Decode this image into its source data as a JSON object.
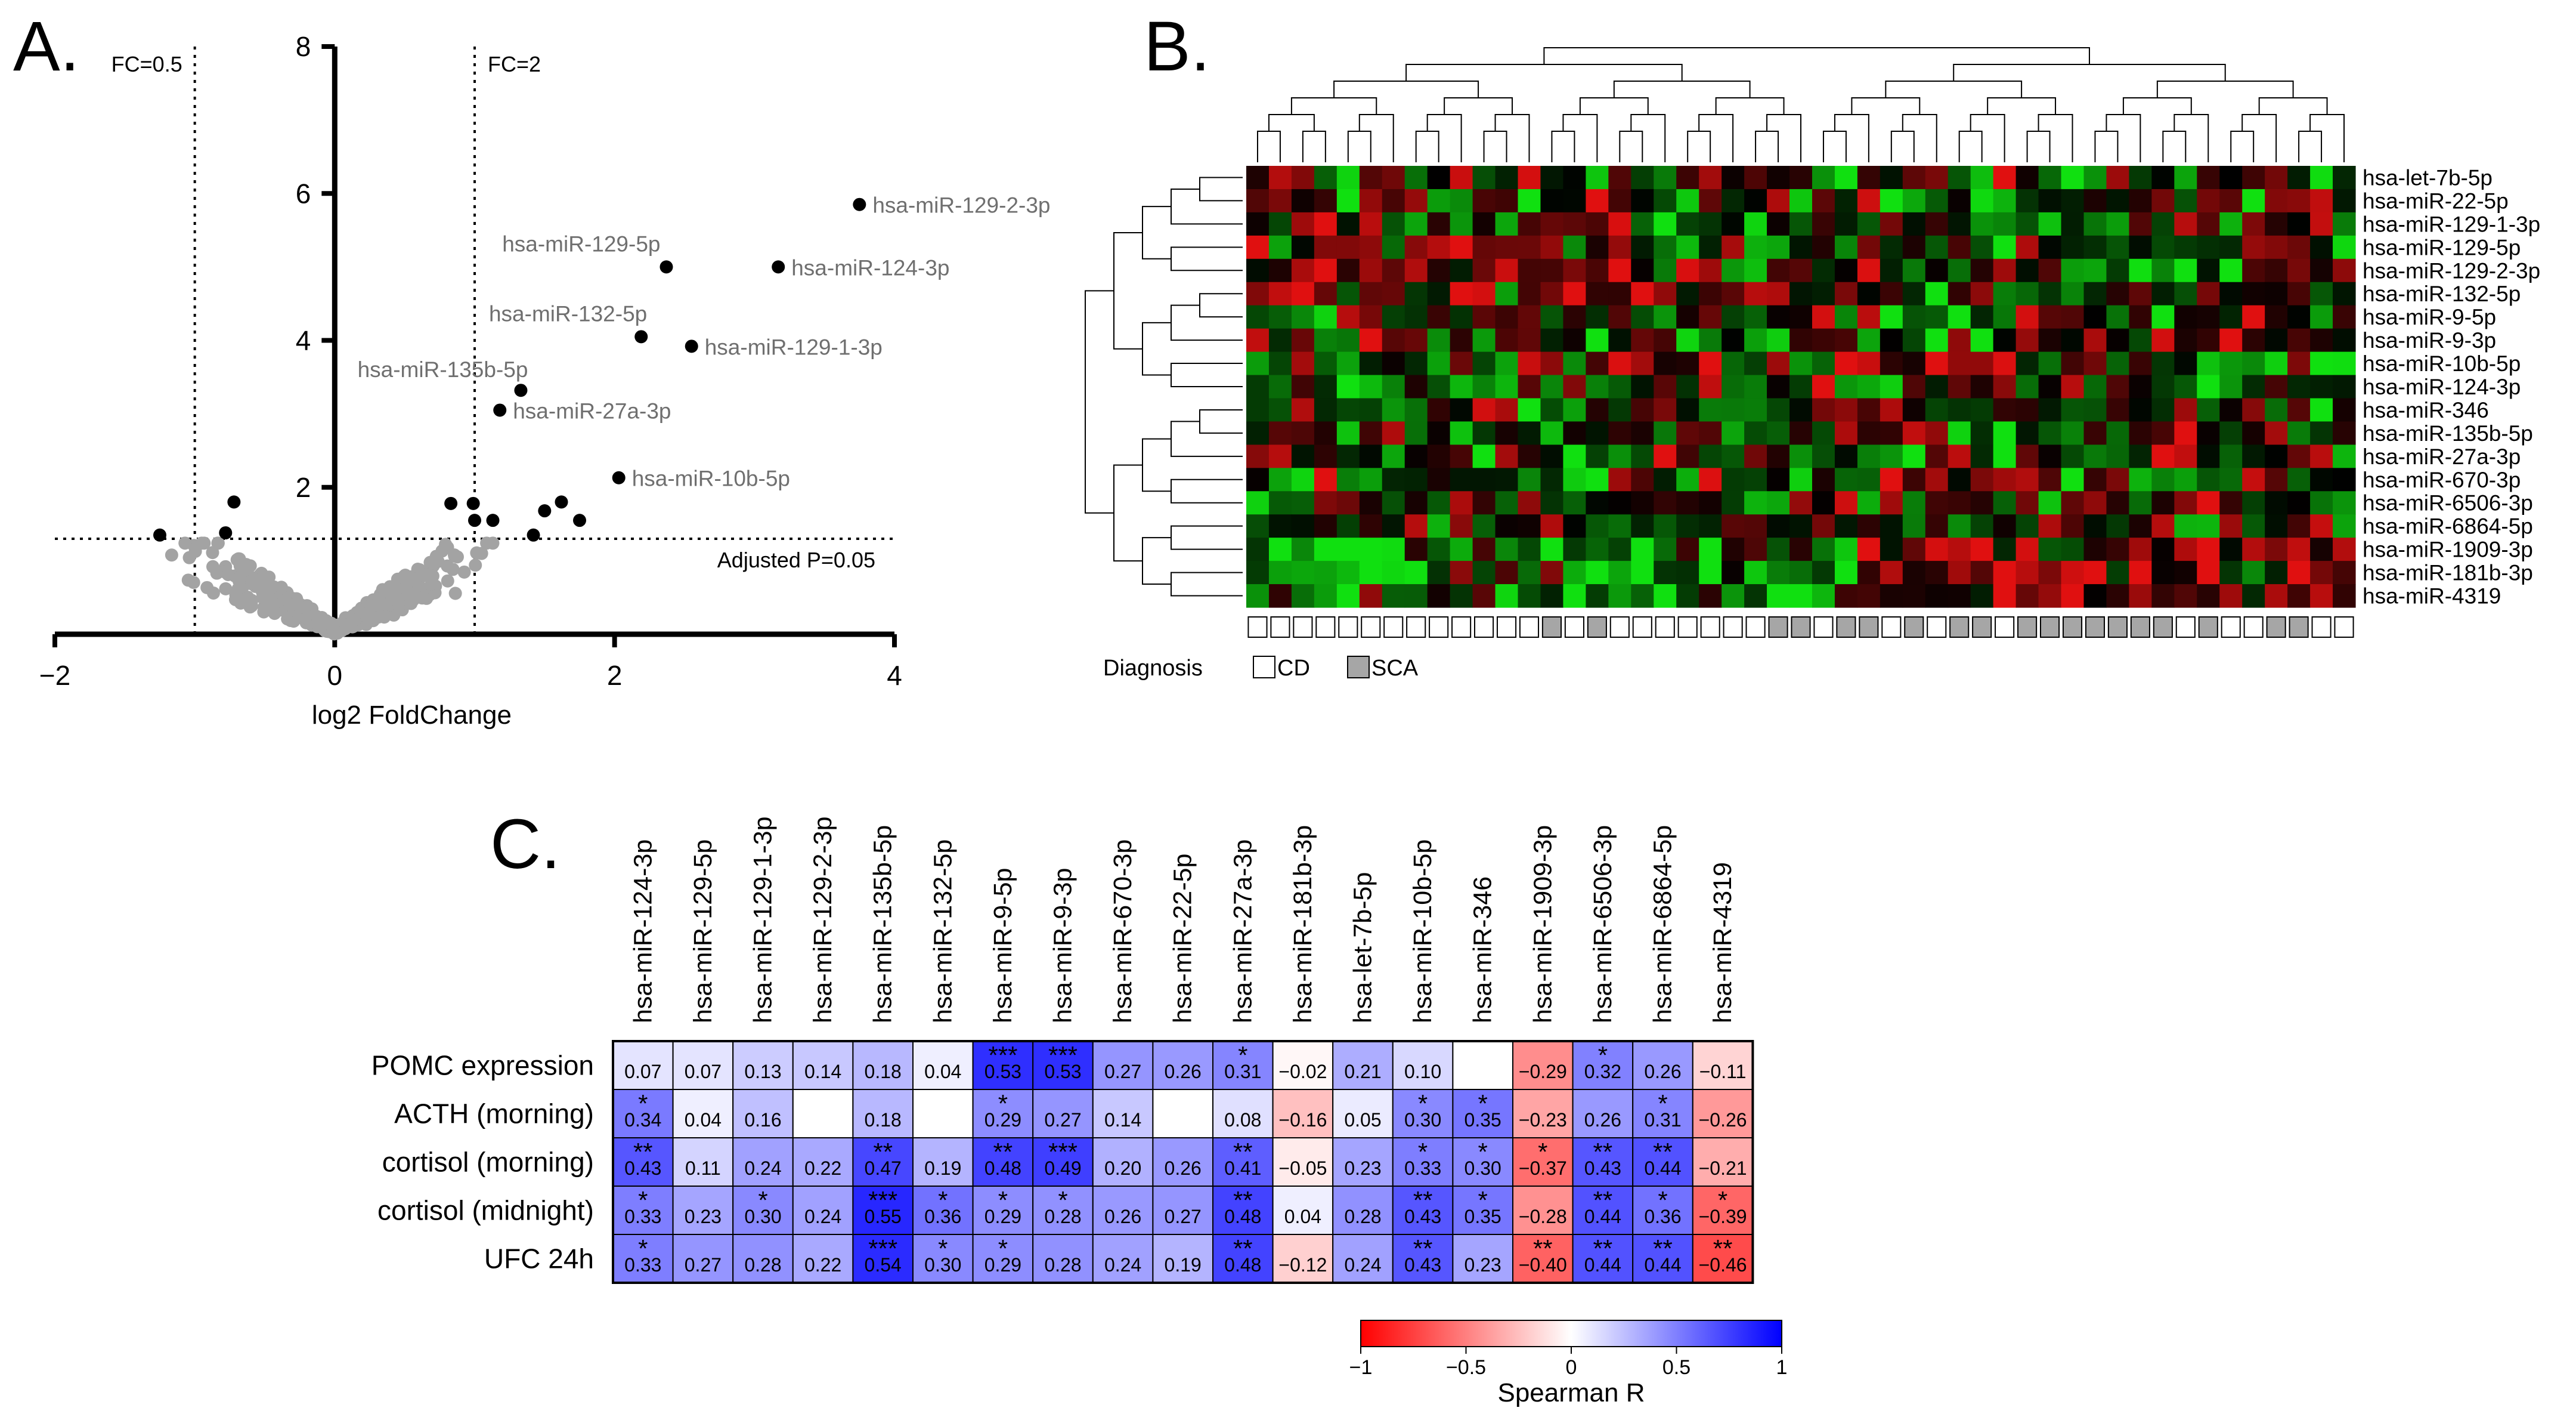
{
  "panel_labels": {
    "a": "A.",
    "b": "B.",
    "c": "C."
  },
  "chart_data": [
    {
      "id": "A",
      "type": "scatter",
      "xlabel": "log2 FoldChange",
      "ylabel": "",
      "xlim": [
        -2,
        4
      ],
      "ylim": [
        0,
        8
      ],
      "xticks": [
        -2,
        0,
        2,
        4
      ],
      "yticks": [
        2,
        4,
        6,
        8
      ],
      "xtick_labels": [
        "−2",
        "0",
        "2",
        "4"
      ],
      "ytick_labels": [
        "2",
        "4",
        "6",
        "8"
      ],
      "threshold_lines": [
        {
          "label": "FC=0.5",
          "axis": "x",
          "value": -1
        },
        {
          "label": "FC=2",
          "axis": "x",
          "value": 1
        },
        {
          "label": "Adjusted P=0.05",
          "axis": "y",
          "value": 1.3
        }
      ],
      "labeled_points": [
        {
          "label": "hsa-miR-129-2-3p",
          "x": 3.75,
          "y": 5.85
        },
        {
          "label": "hsa-miR-129-5p",
          "x": 2.37,
          "y": 5.0
        },
        {
          "label": "hsa-miR-124-3p",
          "x": 3.17,
          "y": 5.0
        },
        {
          "label": "hsa-miR-132-5p",
          "x": 2.19,
          "y": 4.05
        },
        {
          "label": "hsa-miR-129-1-3p",
          "x": 2.55,
          "y": 3.92
        },
        {
          "label": "hsa-miR-135b-5p",
          "x": 1.33,
          "y": 3.32
        },
        {
          "label": "hsa-miR-27a-3p",
          "x": 1.18,
          "y": 3.05
        },
        {
          "label": "hsa-miR-10b-5p",
          "x": 2.03,
          "y": 2.13
        }
      ],
      "other_significant_points": [
        {
          "x": -1.25,
          "y": 1.35
        },
        {
          "x": -0.72,
          "y": 1.8
        },
        {
          "x": -0.78,
          "y": 1.38
        },
        {
          "x": 0.83,
          "y": 1.78
        },
        {
          "x": 0.99,
          "y": 1.78
        },
        {
          "x": 1.0,
          "y": 1.55
        },
        {
          "x": 1.13,
          "y": 1.55
        },
        {
          "x": 1.42,
          "y": 1.35
        },
        {
          "x": 1.5,
          "y": 1.68
        },
        {
          "x": 1.62,
          "y": 1.8
        },
        {
          "x": 1.75,
          "y": 1.55
        }
      ],
      "gray_point_count": 550
    },
    {
      "id": "B",
      "type": "heatmap",
      "rows": [
        "hsa-let-7b-5p",
        "hsa-miR-22-5p",
        "hsa-miR-129-1-3p",
        "hsa-miR-129-5p",
        "hsa-miR-129-2-3p",
        "hsa-miR-132-5p",
        "hsa-miR-9-5p",
        "hsa-miR-9-3p",
        "hsa-miR-10b-5p",
        "hsa-miR-124-3p",
        "hsa-miR-346",
        "hsa-miR-135b-5p",
        "hsa-miR-27a-3p",
        "hsa-miR-670-3p",
        "hsa-miR-6506-3p",
        "hsa-miR-6864-5p",
        "hsa-miR-1909-3p",
        "hsa-miR-181b-3p",
        "hsa-miR-4319"
      ],
      "n_samples": 49,
      "diagnosis_label": "Diagnosis",
      "legend": [
        {
          "name": "CD",
          "color": "#ffffff"
        },
        {
          "name": "SCA",
          "color": "#a6a6a6"
        }
      ],
      "sample_diagnosis": "CCCCCCCCCCCCCSCSCCCCCCCSSCSSCSCSSCSSSSSSSCSCCSSCC",
      "color_scale": [
        "#10e010",
        "#000000",
        "#e01010"
      ],
      "dendrogram": "hierarchical clustering on rows and columns"
    },
    {
      "id": "C",
      "type": "heatmap",
      "title": "",
      "colorbar_label": "Spearman R",
      "colorbar_range": [
        -1,
        1
      ],
      "colorbar_ticks": [
        "−1",
        "−0.5",
        "0",
        "0.5",
        "1"
      ],
      "color_scale": [
        "#ff0000",
        "#ffffff",
        "#0000ff"
      ],
      "columns": [
        "hsa-miR-124-3p",
        "hsa-miR-129-5p",
        "hsa-miR-129-1-3p",
        "hsa-miR-129-2-3p",
        "hsa-miR-135b-5p",
        "hsa-miR-132-5p",
        "hsa-miR-9-5p",
        "hsa-miR-9-3p",
        "hsa-miR-670-3p",
        "hsa-miR-22-5p",
        "hsa-miR-27a-3p",
        "hsa-miR-181b-3p",
        "hsa-let-7b-5p",
        "hsa-miR-10b-5p",
        "hsa-miR-346",
        "hsa-miR-1909-3p",
        "hsa-miR-6506-3p",
        "hsa-miR-6864-5p",
        "hsa-miR-4319"
      ],
      "rows": [
        "POMC expression",
        "ACTH (morning)",
        "cortisol (morning)",
        "cortisol (midnight)",
        "UFC 24h"
      ],
      "values": [
        [
          0.07,
          0.07,
          0.13,
          0.14,
          0.18,
          0.04,
          0.53,
          0.53,
          0.27,
          0.26,
          0.31,
          -0.02,
          0.21,
          0.1,
          null,
          -0.29,
          0.32,
          0.26,
          -0.11
        ],
        [
          0.34,
          0.04,
          0.16,
          null,
          0.18,
          null,
          0.29,
          0.27,
          0.14,
          null,
          0.08,
          -0.16,
          0.05,
          0.3,
          0.35,
          -0.23,
          0.26,
          0.31,
          -0.26
        ],
        [
          0.43,
          0.11,
          0.24,
          0.22,
          0.47,
          0.19,
          0.48,
          0.49,
          0.2,
          0.26,
          0.41,
          -0.05,
          0.23,
          0.33,
          0.3,
          -0.37,
          0.43,
          0.44,
          -0.21
        ],
        [
          0.33,
          0.23,
          0.3,
          0.24,
          0.55,
          0.36,
          0.29,
          0.28,
          0.26,
          0.27,
          0.48,
          0.04,
          0.28,
          0.43,
          0.35,
          -0.28,
          0.44,
          0.36,
          -0.39
        ],
        [
          0.33,
          0.27,
          0.28,
          0.22,
          0.54,
          0.3,
          0.29,
          0.28,
          0.24,
          0.19,
          0.48,
          -0.12,
          0.24,
          0.43,
          0.23,
          -0.4,
          0.44,
          0.44,
          -0.46
        ]
      ],
      "value_labels": [
        [
          "0.07",
          "0.07",
          "0.13",
          "0.14",
          "0.18",
          "0.04",
          "0.53",
          "0.53",
          "0.27",
          "0.26",
          "0.31",
          "−0.02",
          "0.21",
          "0.10",
          "",
          "−0.29",
          "0.32",
          "0.26",
          "−0.11"
        ],
        [
          "0.34",
          "0.04",
          "0.16",
          "",
          "0.18",
          "",
          "0.29",
          "0.27",
          "0.14",
          "",
          "0.08",
          "−0.16",
          "0.05",
          "0.30",
          "0.35",
          "−0.23",
          "0.26",
          "0.31",
          "−0.26"
        ],
        [
          "0.43",
          "0.11",
          "0.24",
          "0.22",
          "0.47",
          "0.19",
          "0.48",
          "0.49",
          "0.20",
          "0.26",
          "0.41",
          "−0.05",
          "0.23",
          "0.33",
          "0.30",
          "−0.37",
          "0.43",
          "0.44",
          "−0.21"
        ],
        [
          "0.33",
          "0.23",
          "0.30",
          "0.24",
          "0.55",
          "0.36",
          "0.29",
          "0.28",
          "0.26",
          "0.27",
          "0.48",
          "0.04",
          "0.28",
          "0.43",
          "0.35",
          "−0.28",
          "0.44",
          "0.36",
          "−0.39"
        ],
        [
          "0.33",
          "0.27",
          "0.28",
          "0.22",
          "0.54",
          "0.30",
          "0.29",
          "0.28",
          "0.24",
          "0.19",
          "0.48",
          "−0.12",
          "0.24",
          "0.43",
          "0.23",
          "−0.40",
          "0.44",
          "0.44",
          "−0.46"
        ]
      ],
      "significance": [
        [
          "",
          "",
          "",
          "",
          "",
          "",
          "***",
          "***",
          "",
          "",
          "*",
          "",
          "",
          "",
          "",
          "",
          "*",
          "",
          ""
        ],
        [
          "*",
          "",
          "",
          "",
          "",
          "",
          "*",
          "",
          "",
          "",
          "",
          "",
          "",
          "*",
          "*",
          "",
          "",
          "*",
          ""
        ],
        [
          "**",
          "",
          "",
          "",
          "**",
          "",
          "**",
          "***",
          "",
          "",
          "**",
          "",
          "",
          "*",
          "*",
          "*",
          "**",
          "**",
          ""
        ],
        [
          "*",
          "",
          "*",
          "",
          "***",
          "*",
          "*",
          "*",
          "",
          "",
          "**",
          "",
          "",
          "**",
          "*",
          "",
          "**",
          "*",
          "*"
        ],
        [
          "*",
          "",
          "",
          "",
          "***",
          "*",
          "*",
          "",
          "",
          "",
          "**",
          "",
          "",
          "**",
          "",
          "**",
          "**",
          "**",
          "**"
        ]
      ]
    }
  ]
}
